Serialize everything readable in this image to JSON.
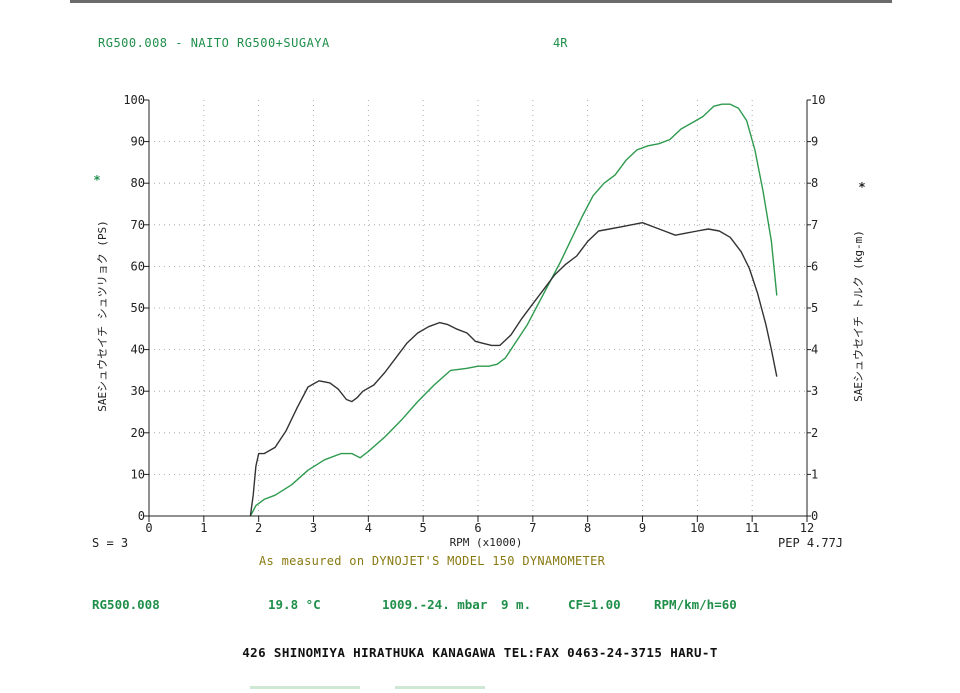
{
  "header": {
    "run_title": "RG500.008 - NAITO RG500+SUGAYA",
    "gear": "4R"
  },
  "chart_data": {
    "type": "line",
    "xlabel": "RPM (x1000)",
    "ylabel_left": "SAEシュウセイチ シュツリョク (PS)",
    "ylabel_right": "SAEシュウセイチ トルク (kg-m)",
    "left_marker": "*",
    "right_marker": "*",
    "x_ticks": [
      "0",
      "1",
      "2",
      "3",
      "4",
      "5",
      "6",
      "7",
      "8",
      "9",
      "10",
      "11",
      "12"
    ],
    "y_left_ticks": [
      "0",
      "10",
      "20",
      "30",
      "40",
      "50",
      "60",
      "70",
      "80",
      "90",
      "100"
    ],
    "y_right_ticks": [
      "0",
      "1",
      "2",
      "3",
      "4",
      "5",
      "6",
      "7",
      "8",
      "9",
      "10"
    ],
    "xlim": [
      0,
      12
    ],
    "ylim_left": [
      0,
      100
    ],
    "ylim_right": [
      0,
      10
    ],
    "grid": true,
    "series": [
      {
        "axis": "left",
        "color": "#2e9a4e",
        "x": [
          1.85,
          1.95,
          2.1,
          2.3,
          2.6,
          2.9,
          3.2,
          3.5,
          3.7,
          3.85,
          4.0,
          4.3,
          4.6,
          4.9,
          5.2,
          5.5,
          5.8,
          6.0,
          6.2,
          6.35,
          6.5,
          6.7,
          6.9,
          7.1,
          7.3,
          7.5,
          7.7,
          7.9,
          8.1,
          8.3,
          8.5,
          8.7,
          8.9,
          9.1,
          9.3,
          9.5,
          9.7,
          9.9,
          10.1,
          10.3,
          10.45,
          10.6,
          10.75,
          10.9,
          11.05,
          11.2,
          11.35,
          11.45
        ],
        "y": [
          0,
          2.5,
          4,
          5,
          7.5,
          11,
          13.5,
          15,
          15,
          14,
          15.5,
          19,
          23,
          27.5,
          31.5,
          35,
          35.5,
          36,
          36,
          36.5,
          38,
          42,
          46,
          51,
          56,
          61,
          66.5,
          72,
          77,
          80,
          82,
          85.5,
          88,
          89,
          89.5,
          90.5,
          93,
          94.5,
          96,
          98.5,
          99,
          99,
          98,
          95,
          88,
          78,
          66,
          53
        ]
      },
      {
        "axis": "right",
        "color": "#333333",
        "x": [
          1.85,
          1.9,
          1.95,
          2.0,
          2.1,
          2.3,
          2.5,
          2.7,
          2.9,
          3.1,
          3.3,
          3.45,
          3.6,
          3.7,
          3.8,
          3.9,
          4.1,
          4.3,
          4.5,
          4.7,
          4.9,
          5.1,
          5.3,
          5.45,
          5.6,
          5.8,
          5.95,
          6.1,
          6.25,
          6.4,
          6.6,
          6.8,
          7.0,
          7.2,
          7.4,
          7.6,
          7.8,
          8.0,
          8.2,
          8.4,
          8.6,
          8.8,
          9.0,
          9.2,
          9.4,
          9.6,
          9.8,
          10.0,
          10.2,
          10.4,
          10.6,
          10.8,
          10.95,
          11.1,
          11.25,
          11.35,
          11.45
        ],
        "y": [
          0,
          0.5,
          1.2,
          1.5,
          1.5,
          1.65,
          2.05,
          2.6,
          3.1,
          3.25,
          3.2,
          3.05,
          2.8,
          2.75,
          2.85,
          3.0,
          3.15,
          3.45,
          3.8,
          4.15,
          4.4,
          4.55,
          4.65,
          4.6,
          4.5,
          4.4,
          4.2,
          4.15,
          4.1,
          4.1,
          4.35,
          4.75,
          5.1,
          5.45,
          5.8,
          6.05,
          6.25,
          6.6,
          6.85,
          6.9,
          6.95,
          7.0,
          7.05,
          6.95,
          6.85,
          6.75,
          6.8,
          6.85,
          6.9,
          6.85,
          6.7,
          6.35,
          5.95,
          5.35,
          4.6,
          4.0,
          3.35
        ]
      }
    ]
  },
  "footer": {
    "s_value": "S = 3",
    "pep": "PEP 4.77J",
    "measured": "As measured on DYNOJET'S MODEL 150 DYNAMOMETER"
  },
  "info": {
    "run_id": "RG500.008",
    "temperature": "19.8 °C",
    "pressure": "1009.-24. mbar",
    "altitude": "9 m.",
    "cf": "CF=1.00",
    "ratio": "RPM/km/h=60"
  },
  "address": "426  SHINOMIYA HIRATHUKA KANAGAWA TEL:FAX 0463-24-3715 HARU-T"
}
